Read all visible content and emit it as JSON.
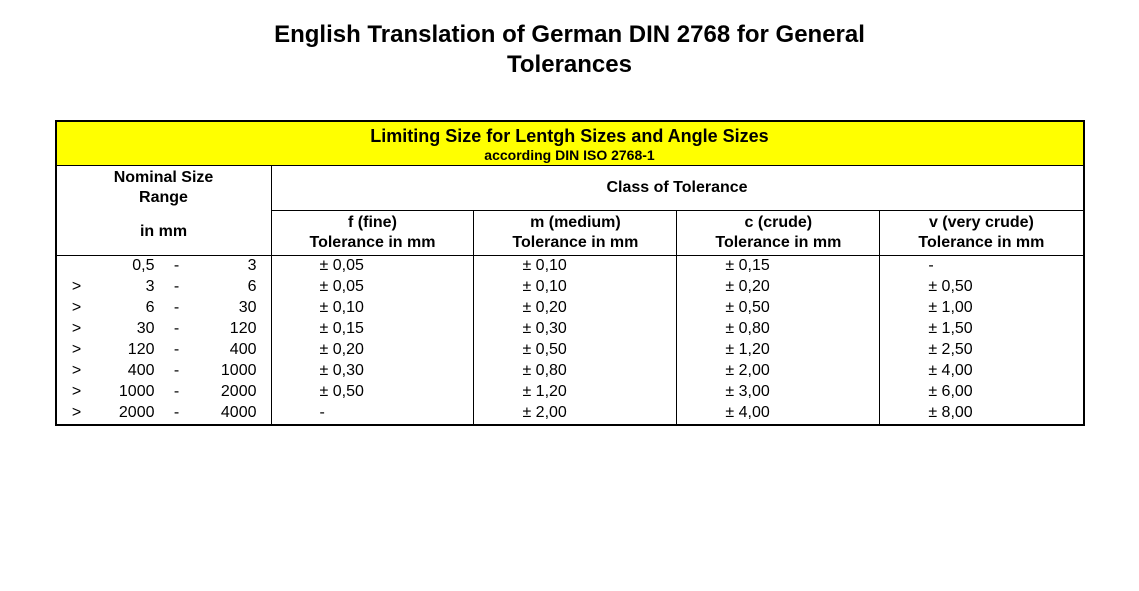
{
  "title_line1": "English Translation of German DIN 2768 for General",
  "title_line2": "Tolerances",
  "banner_title": "Limiting Size for Lentgh Sizes and Angle Sizes",
  "banner_sub": "according DIN ISO 2768-1",
  "banner_bg": "#ffff00",
  "head_nominal_line1": "Nominal Size",
  "head_nominal_line2": "Range",
  "head_nominal_line3": "in mm",
  "head_class": "Class of Tolerance",
  "columns": [
    {
      "code": "f (fine)",
      "unit": "Tolerance in mm"
    },
    {
      "code": "m (medium)",
      "unit": "Tolerance in mm"
    },
    {
      "code": "c (crude)",
      "unit": "Tolerance in mm"
    },
    {
      "code": "v (very crude)",
      "unit": "Tolerance in mm"
    }
  ],
  "rows": [
    {
      "gt": "",
      "lo": "0,5",
      "hi": "3",
      "f": "± 0,05",
      "m": "± 0,10",
      "c": "± 0,15",
      "v": "-"
    },
    {
      "gt": ">",
      "lo": "3",
      "hi": "6",
      "f": "± 0,05",
      "m": "± 0,10",
      "c": "± 0,20",
      "v": "± 0,50"
    },
    {
      "gt": ">",
      "lo": "6",
      "hi": "30",
      "f": "± 0,10",
      "m": "± 0,20",
      "c": "± 0,50",
      "v": "± 1,00"
    },
    {
      "gt": ">",
      "lo": "30",
      "hi": "120",
      "f": "± 0,15",
      "m": "± 0,30",
      "c": "± 0,80",
      "v": "± 1,50"
    },
    {
      "gt": ">",
      "lo": "120",
      "hi": "400",
      "f": "± 0,20",
      "m": "± 0,50",
      "c": "± 1,20",
      "v": "± 2,50"
    },
    {
      "gt": ">",
      "lo": "400",
      "hi": "1000",
      "f": "± 0,30",
      "m": "± 0,80",
      "c": "± 2,00",
      "v": "± 4,00"
    },
    {
      "gt": ">",
      "lo": "1000",
      "hi": "2000",
      "f": "± 0,50",
      "m": "± 1,20",
      "c": "± 3,00",
      "v": "± 6,00"
    },
    {
      "gt": ">",
      "lo": "2000",
      "hi": "4000",
      "f": "-",
      "m": "± 2,00",
      "c": "± 4,00",
      "v": "± 8,00"
    }
  ]
}
